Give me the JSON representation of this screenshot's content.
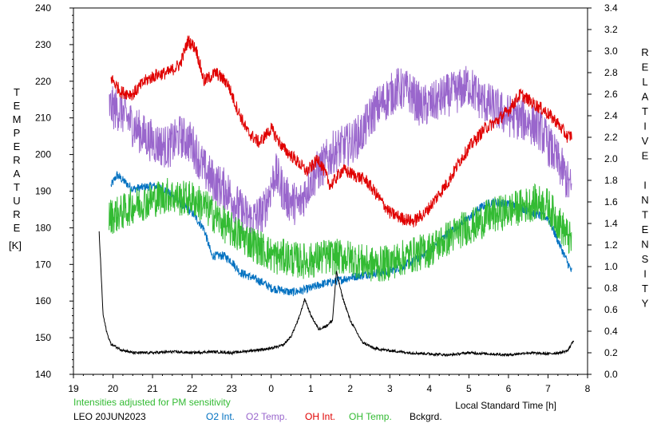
{
  "chart_data": {
    "type": "line",
    "left_axis": {
      "label": "TEMPERATURE",
      "unit": "[K]",
      "range": [
        140,
        240
      ],
      "ticks": [
        140,
        150,
        160,
        170,
        180,
        190,
        200,
        210,
        220,
        230,
        240
      ]
    },
    "right_axis": {
      "label": "RELATIVE INTENSITY",
      "range": [
        0.0,
        3.4
      ],
      "ticks": [
        "0.0",
        "0.2",
        "0.4",
        "0.6",
        "0.8",
        "1.0",
        "1.2",
        "1.4",
        "1.6",
        "1.8",
        "2.0",
        "2.2",
        "2.4",
        "2.6",
        "2.8",
        "3.0",
        "3.2",
        "3.4"
      ]
    },
    "x_axis": {
      "label": "Local Standard Time [h]",
      "ticks": [
        "19",
        "20",
        "21",
        "22",
        "23",
        "0",
        "1",
        "2",
        "3",
        "4",
        "5",
        "6",
        "7",
        "8"
      ]
    },
    "note": "Intensities adjusted for PM sensitivity",
    "station": "LEO 20JUN2023",
    "series": [
      {
        "name": "O2 Int.",
        "color": "#0070c0",
        "axis": "right",
        "x": [
          19.95,
          20.1,
          20.5,
          21.0,
          21.3,
          21.6,
          22.0,
          22.3,
          22.5,
          22.8,
          23.0,
          23.2,
          23.5,
          23.8,
          24.0,
          24.3,
          24.5,
          24.8,
          25.0,
          25.3,
          25.6,
          26.0,
          26.3,
          26.6,
          27.0,
          27.3,
          27.6,
          28.0,
          28.3,
          28.6,
          29.0,
          29.3,
          29.6,
          30.0,
          30.3,
          30.6,
          31.0,
          31.3,
          31.6
        ],
        "y": [
          1.75,
          1.85,
          1.72,
          1.75,
          1.72,
          1.62,
          1.5,
          1.35,
          1.1,
          1.1,
          1.05,
          0.95,
          0.9,
          0.85,
          0.8,
          0.78,
          0.76,
          0.78,
          0.8,
          0.84,
          0.86,
          0.9,
          0.92,
          0.94,
          0.96,
          1.0,
          1.05,
          1.15,
          1.25,
          1.35,
          1.45,
          1.55,
          1.6,
          1.58,
          1.55,
          1.5,
          1.45,
          1.2,
          0.95
        ]
      },
      {
        "name": "O2 Temp.",
        "color": "#9966cc",
        "axis": "left",
        "x": [
          19.9,
          20.2,
          20.5,
          20.8,
          21.1,
          21.4,
          21.7,
          22.0,
          22.3,
          22.6,
          22.9,
          23.2,
          23.5,
          23.8,
          24.1,
          24.4,
          24.7,
          25.0,
          25.3,
          25.6,
          26.0,
          26.3,
          26.6,
          26.9,
          27.2,
          27.5,
          27.8,
          28.1,
          28.4,
          28.7,
          29.0,
          29.3,
          29.6,
          29.9,
          30.2,
          30.5,
          30.8,
          31.1,
          31.4,
          31.6
        ],
        "y": [
          213,
          212,
          208,
          205,
          203,
          202,
          205,
          203,
          196,
          192,
          190,
          185,
          182,
          184,
          195,
          188,
          186,
          193,
          197,
          201,
          203,
          206,
          212,
          215,
          218,
          217,
          213,
          214,
          216,
          217,
          219,
          215,
          213,
          211,
          210,
          209,
          207,
          201,
          195,
          190
        ]
      },
      {
        "name": "OH Int.",
        "color": "#e00000",
        "axis": "right",
        "x": [
          19.95,
          20.2,
          20.5,
          20.8,
          21.1,
          21.4,
          21.7,
          21.9,
          22.1,
          22.3,
          22.6,
          22.9,
          23.1,
          23.4,
          23.7,
          24.0,
          24.3,
          24.6,
          24.9,
          25.2,
          25.5,
          25.8,
          26.1,
          26.4,
          26.7,
          27.0,
          27.3,
          27.6,
          27.9,
          28.2,
          28.5,
          28.8,
          29.1,
          29.4,
          29.7,
          30.0,
          30.3,
          30.6,
          30.9,
          31.2,
          31.5,
          31.6
        ],
        "y": [
          2.75,
          2.62,
          2.6,
          2.72,
          2.78,
          2.8,
          2.88,
          3.1,
          3.02,
          2.72,
          2.8,
          2.7,
          2.5,
          2.25,
          2.15,
          2.28,
          2.1,
          2.0,
          1.88,
          2.0,
          1.75,
          1.9,
          1.85,
          1.8,
          1.65,
          1.5,
          1.45,
          1.42,
          1.5,
          1.65,
          1.8,
          2.0,
          2.15,
          2.28,
          2.35,
          2.45,
          2.6,
          2.52,
          2.45,
          2.35,
          2.2,
          2.22
        ]
      },
      {
        "name": "OH Temp.",
        "color": "#33bb33",
        "axis": "left",
        "x": [
          19.9,
          20.2,
          20.5,
          20.8,
          21.1,
          21.4,
          21.7,
          22.0,
          22.3,
          22.6,
          22.9,
          23.2,
          23.5,
          23.8,
          24.1,
          24.4,
          24.7,
          25.0,
          25.3,
          25.6,
          25.9,
          26.2,
          26.5,
          26.8,
          27.1,
          27.4,
          27.7,
          28.0,
          28.3,
          28.6,
          28.9,
          29.2,
          29.5,
          29.8,
          30.1,
          30.4,
          30.7,
          31.0,
          31.3,
          31.6
        ],
        "y": [
          183,
          184,
          186,
          187,
          188,
          189,
          188,
          188,
          186,
          183,
          180,
          178,
          176,
          174,
          172,
          172,
          171,
          171,
          172,
          172,
          172,
          171,
          170,
          170,
          171,
          172,
          173,
          174,
          176,
          178,
          180,
          181,
          183,
          184,
          185,
          186,
          187,
          186,
          181,
          176
        ]
      },
      {
        "name": "Bckgrd.",
        "color": "#000000",
        "axis": "right",
        "x": [
          19.65,
          19.75,
          19.85,
          19.95,
          20.2,
          20.5,
          21.0,
          21.5,
          22.0,
          22.5,
          23.0,
          23.5,
          24.0,
          24.3,
          24.5,
          24.7,
          24.85,
          25.0,
          25.2,
          25.4,
          25.55,
          25.65,
          25.8,
          26.0,
          26.3,
          26.6,
          27.0,
          27.5,
          28.0,
          28.5,
          29.0,
          29.5,
          30.0,
          30.5,
          31.0,
          31.3,
          31.5,
          31.65
        ],
        "y": [
          1.32,
          0.55,
          0.38,
          0.28,
          0.23,
          0.2,
          0.2,
          0.21,
          0.2,
          0.21,
          0.2,
          0.22,
          0.24,
          0.27,
          0.35,
          0.52,
          0.7,
          0.55,
          0.42,
          0.45,
          0.5,
          0.95,
          0.72,
          0.5,
          0.3,
          0.24,
          0.22,
          0.2,
          0.19,
          0.18,
          0.2,
          0.19,
          0.18,
          0.2,
          0.19,
          0.2,
          0.22,
          0.32
        ]
      }
    ]
  }
}
